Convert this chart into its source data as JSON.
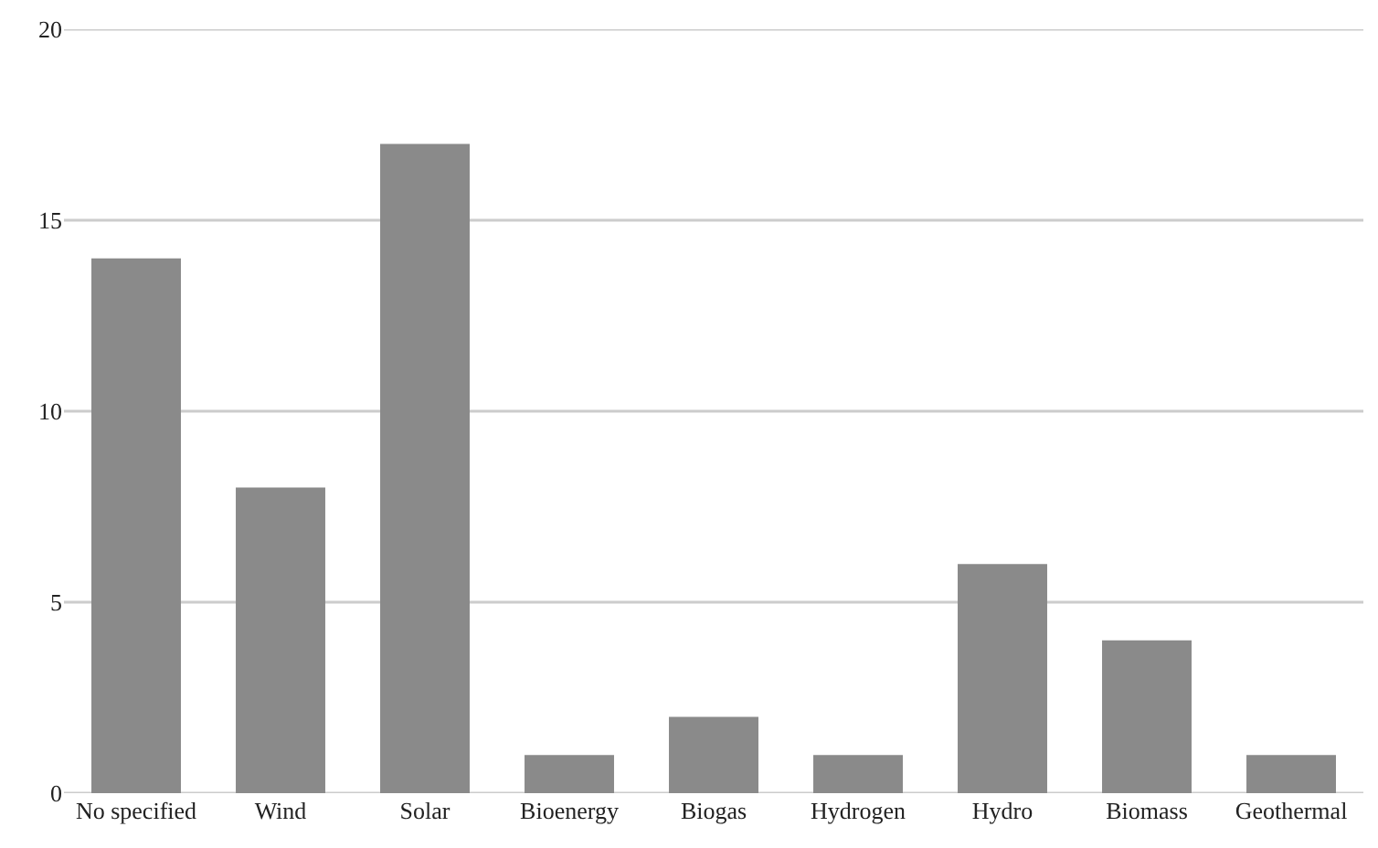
{
  "chart_data": {
    "type": "bar",
    "categories": [
      "No specified",
      "Wind",
      "Solar",
      "Bioenergy",
      "Biogas",
      "Hydrogen",
      "Hydro",
      "Biomass",
      "Geothermal"
    ],
    "values": [
      14,
      8,
      17,
      1,
      2,
      1,
      6,
      4,
      1
    ],
    "color": "#8a8a8a",
    "ylim": [
      0,
      20
    ],
    "yticks": [
      0,
      5,
      10,
      15,
      20
    ],
    "grid": "y"
  }
}
